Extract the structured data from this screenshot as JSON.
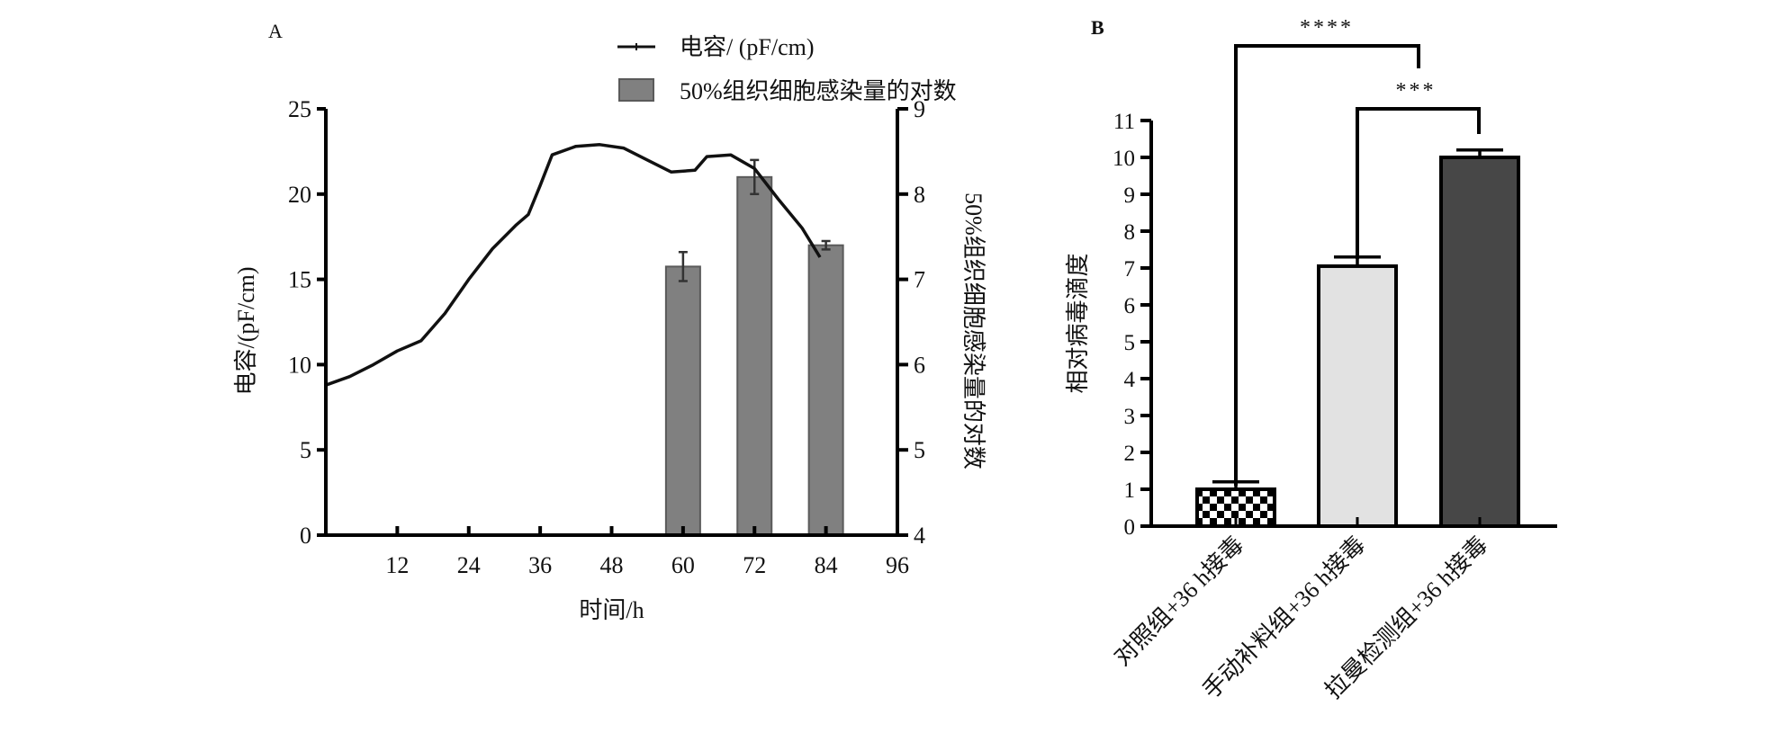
{
  "chart_data": [
    {
      "panel_label": "A",
      "type": "line+bar",
      "xlabel": "时间/h",
      "ylabel": "电容/(pF/cm)",
      "y2label": "50%组织细胞感染量的对数",
      "xlim": [
        0,
        96
      ],
      "ylim": [
        0,
        25
      ],
      "y2lim": [
        4,
        9
      ],
      "xticks": [
        12,
        24,
        36,
        48,
        60,
        72,
        84,
        96
      ],
      "yticks": [
        0,
        5,
        10,
        15,
        20,
        25
      ],
      "y2ticks": [
        4,
        5,
        6,
        7,
        8,
        9
      ],
      "legend_placement": "top",
      "series": [
        {
          "name": "电容/ (pF/cm)",
          "type": "line",
          "axis": "left",
          "color": "#111111",
          "x": [
            0,
            4,
            8,
            12,
            16,
            20,
            24,
            28,
            32,
            34,
            36,
            38,
            42,
            46,
            50,
            54,
            58,
            62,
            64,
            68,
            72,
            76,
            80,
            83
          ],
          "y": [
            8.8,
            9.3,
            10.0,
            10.8,
            11.4,
            13.0,
            15.0,
            16.8,
            18.2,
            18.8,
            20.5,
            22.3,
            22.8,
            22.9,
            22.7,
            22.0,
            21.3,
            21.4,
            22.2,
            22.3,
            21.5,
            19.7,
            18.0,
            16.3
          ]
        },
        {
          "name": "50%组织细胞感染量的对数",
          "type": "bar",
          "axis": "right",
          "color": "#808080",
          "x": [
            60,
            72,
            84
          ],
          "y": [
            7.15,
            8.2,
            7.4
          ],
          "error": [
            0.17,
            0.2,
            0.05
          ]
        }
      ]
    },
    {
      "panel_label": "B",
      "type": "bar",
      "ylabel": "相对病毒滴度",
      "ylim": [
        0,
        11
      ],
      "yticks": [
        0,
        1,
        2,
        3,
        4,
        5,
        6,
        7,
        8,
        9,
        10,
        11
      ],
      "categories": [
        "对照组+36 h接毒",
        "手动补料组+36 h接毒",
        "拉曼检测组+36 h接毒"
      ],
      "values": [
        1.0,
        7.05,
        10.0
      ],
      "error": [
        0.2,
        0.25,
        0.2
      ],
      "fills": [
        "checker",
        "#e2e2e2",
        "#474747"
      ],
      "significance": [
        {
          "from": 0,
          "to": 1.5,
          "label": "****"
        },
        {
          "from": 1,
          "to": 2,
          "label": "***"
        }
      ]
    }
  ]
}
